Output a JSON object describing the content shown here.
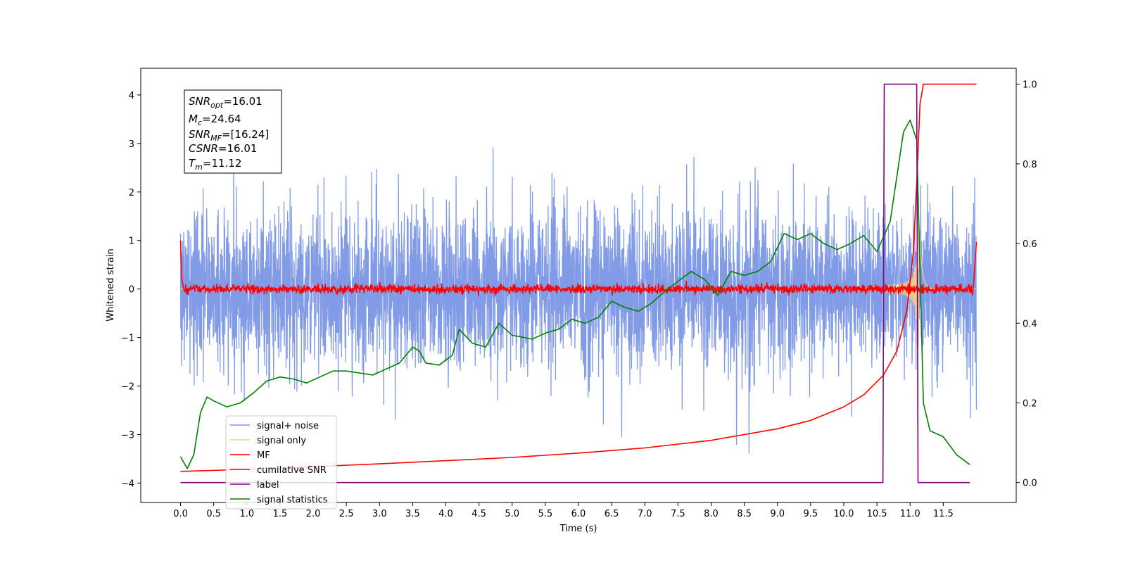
{
  "chart_data": {
    "type": "line",
    "xlabel": "Time (s)",
    "ylabel": "Whitened strain",
    "xlim": [
      -0.6,
      12.6
    ],
    "ylim": [
      -4.4,
      4.55
    ],
    "ylim_right": [
      -0.05,
      1.04
    ],
    "x_ticks": [
      "0.0",
      "0.5",
      "1.0",
      "1.5",
      "2.0",
      "2.5",
      "3.0",
      "3.5",
      "4.0",
      "4.5",
      "5.0",
      "5.5",
      "6.0",
      "6.5",
      "7.0",
      "7.5",
      "8.0",
      "8.5",
      "9.0",
      "9.5",
      "10.0",
      "10.5",
      "11.0",
      "11.5"
    ],
    "y_ticks_left": [
      "−4",
      "−3",
      "−2",
      "−1",
      "0",
      "1",
      "2",
      "3",
      "4"
    ],
    "y_ticks_right": [
      "0.0",
      "0.2",
      "0.4",
      "0.6",
      "0.8",
      "1.0"
    ],
    "legend_placement": "lower-left",
    "grid": false,
    "annotation": {
      "snr_opt": {
        "sym": "SNR",
        "sub": "opt",
        "val": "=16.01"
      },
      "mc": {
        "sym": "M",
        "sub": "c",
        "val": "=24.64"
      },
      "snr_mf": {
        "sym": "SNR",
        "sub": "MF",
        "val": "=[16.24]"
      },
      "csnr": {
        "sym": "CSNR",
        "sub": "",
        "val": "=16.01"
      },
      "tm": {
        "sym": "T",
        "sub": "m",
        "val": "=11.12"
      }
    },
    "series": [
      {
        "name": "signal+ noise",
        "color": "#7b96e6",
        "axis": "left",
        "approx": "gaussian noise, std ~0.75, extremes ~ -3.9 to 4.1, t 0 to 12"
      },
      {
        "name": "signal only",
        "color": "#f5cf87",
        "axis": "left",
        "approx": "chirp; amplitude grows from ~0 to ~1.5 near t=11.1"
      },
      {
        "name": "MF",
        "color": "#ff0000",
        "axis": "left",
        "approx": "~0 with small jitter; starts at 1.0 at t=0 and rises to 1.0 at t=12"
      },
      {
        "name": "cumilative SNR",
        "color": "#ff0000",
        "axis": "right",
        "x": [
          0.0,
          1.0,
          2.0,
          3.0,
          4.0,
          5.0,
          6.0,
          7.0,
          8.0,
          9.0,
          9.5,
          10.0,
          10.3,
          10.6,
          10.8,
          10.95,
          11.05,
          11.1,
          11.15,
          11.2,
          12.0
        ],
        "y": [
          0.028,
          0.033,
          0.04,
          0.047,
          0.055,
          0.063,
          0.074,
          0.087,
          0.106,
          0.135,
          0.156,
          0.19,
          0.22,
          0.27,
          0.33,
          0.43,
          0.58,
          0.75,
          0.95,
          1.0,
          1.0
        ]
      },
      {
        "name": "label",
        "color": "#800080",
        "axis": "right",
        "x": [
          0.0,
          10.59,
          10.61,
          11.1,
          11.12,
          11.9
        ],
        "y": [
          0.0,
          0.0,
          1.0,
          1.0,
          0.0,
          0.0
        ]
      },
      {
        "name": "signal statistics",
        "color": "#008000",
        "axis": "right",
        "x": [
          0.0,
          0.1,
          0.2,
          0.3,
          0.4,
          0.5,
          0.7,
          0.9,
          1.1,
          1.3,
          1.5,
          1.7,
          1.9,
          2.1,
          2.3,
          2.5,
          2.7,
          2.9,
          3.1,
          3.3,
          3.5,
          3.6,
          3.7,
          3.9,
          4.1,
          4.2,
          4.4,
          4.6,
          4.8,
          5.0,
          5.3,
          5.5,
          5.7,
          5.9,
          6.1,
          6.3,
          6.5,
          6.7,
          6.9,
          7.1,
          7.3,
          7.5,
          7.7,
          7.9,
          8.1,
          8.3,
          8.5,
          8.7,
          8.9,
          9.1,
          9.3,
          9.5,
          9.7,
          9.9,
          10.1,
          10.3,
          10.5,
          10.7,
          10.9,
          11.0,
          11.1,
          11.2,
          11.3,
          11.5,
          11.7,
          11.9
        ],
        "y": [
          0.065,
          0.035,
          0.07,
          0.175,
          0.215,
          0.205,
          0.19,
          0.2,
          0.225,
          0.255,
          0.265,
          0.26,
          0.25,
          0.265,
          0.28,
          0.28,
          0.275,
          0.27,
          0.285,
          0.3,
          0.34,
          0.33,
          0.3,
          0.295,
          0.32,
          0.385,
          0.35,
          0.34,
          0.4,
          0.37,
          0.36,
          0.375,
          0.385,
          0.41,
          0.4,
          0.415,
          0.455,
          0.44,
          0.43,
          0.45,
          0.48,
          0.505,
          0.53,
          0.51,
          0.47,
          0.53,
          0.52,
          0.53,
          0.555,
          0.625,
          0.61,
          0.625,
          0.6,
          0.585,
          0.6,
          0.62,
          0.58,
          0.655,
          0.88,
          0.91,
          0.86,
          0.2,
          0.13,
          0.115,
          0.07,
          0.045
        ]
      }
    ]
  }
}
